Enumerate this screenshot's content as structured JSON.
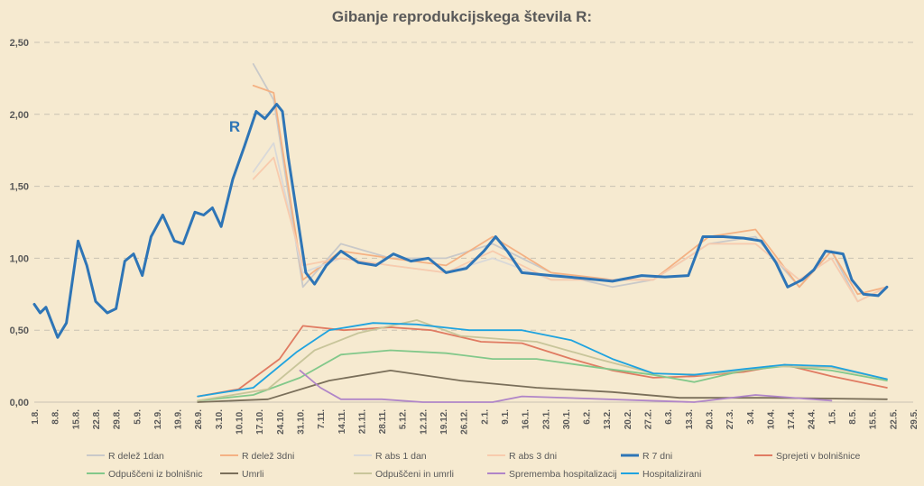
{
  "chart_data": {
    "type": "line",
    "title": "Gibanje reprodukcijskega števila R:",
    "annotation": "R",
    "ylim": [
      0,
      2.5
    ],
    "y_ticks": [
      "0,00",
      "0,50",
      "1,00",
      "1,50",
      "2,00",
      "2,50"
    ],
    "y_tick_values": [
      0,
      0.5,
      1,
      1.5,
      2,
      2.5
    ],
    "grid": "horizontal dashed",
    "legend_position": "bottom",
    "x_start": "2020-08-01",
    "x_end": "2021-05-29",
    "x_ticks": [
      "1.8.",
      "8.8.",
      "15.8.",
      "22.8.",
      "29.8.",
      "5.9.",
      "12.9.",
      "19.9.",
      "26.9.",
      "3.10.",
      "10.10.",
      "17.10.",
      "24.10.",
      "31.10.",
      "7.11.",
      "14.11.",
      "21.11.",
      "28.11.",
      "5.12.",
      "12.12.",
      "19.12.",
      "26.12.",
      "2.1.",
      "9.1.",
      "16.1.",
      "23.1.",
      "30.1.",
      "6.2.",
      "13.2.",
      "20.2.",
      "27.2.",
      "6.3.",
      "13.3.",
      "20.3.",
      "27.3.",
      "3.4.",
      "10.4.",
      "17.4.",
      "24.4.",
      "1.5.",
      "8.5.",
      "15.5.",
      "22.5.",
      "29.5."
    ],
    "series": [
      {
        "name": "R delež 1dan",
        "color": "#c9c9c9",
        "points": [
          [
            "2020-10-15",
            2.35
          ],
          [
            "2020-10-22",
            2.1
          ],
          [
            "2020-11-01",
            0.8
          ],
          [
            "2020-11-14",
            1.1
          ],
          [
            "2020-12-01",
            1.0
          ],
          [
            "2020-12-20",
            1.0
          ],
          [
            "2021-01-05",
            1.1
          ],
          [
            "2021-01-25",
            0.9
          ],
          [
            "2021-02-15",
            0.8
          ],
          [
            "2021-03-01",
            0.85
          ],
          [
            "2021-03-20",
            1.1
          ],
          [
            "2021-04-05",
            1.15
          ],
          [
            "2021-04-20",
            0.8
          ],
          [
            "2021-05-01",
            1.05
          ],
          [
            "2021-05-10",
            0.7
          ],
          [
            "2021-05-20",
            0.8
          ]
        ]
      },
      {
        "name": "R delež 3dni",
        "color": "#f4b183",
        "points": [
          [
            "2020-10-15",
            2.2
          ],
          [
            "2020-10-22",
            2.15
          ],
          [
            "2020-11-01",
            0.85
          ],
          [
            "2020-11-14",
            1.05
          ],
          [
            "2020-12-01",
            1.0
          ],
          [
            "2020-12-20",
            0.95
          ],
          [
            "2021-01-05",
            1.15
          ],
          [
            "2021-01-25",
            0.9
          ],
          [
            "2021-02-15",
            0.85
          ],
          [
            "2021-03-01",
            0.85
          ],
          [
            "2021-03-20",
            1.15
          ],
          [
            "2021-04-05",
            1.2
          ],
          [
            "2021-04-20",
            0.8
          ],
          [
            "2021-05-01",
            1.05
          ],
          [
            "2021-05-10",
            0.75
          ],
          [
            "2021-05-20",
            0.8
          ]
        ]
      },
      {
        "name": "R abs 1 dan",
        "color": "#d9d9d9",
        "points": [
          [
            "2020-10-15",
            1.6
          ],
          [
            "2020-10-22",
            1.8
          ],
          [
            "2020-11-01",
            0.9
          ],
          [
            "2020-11-14",
            1.0
          ],
          [
            "2020-12-01",
            0.95
          ],
          [
            "2020-12-20",
            0.9
          ],
          [
            "2021-01-05",
            1.0
          ],
          [
            "2021-01-25",
            0.85
          ],
          [
            "2021-02-15",
            0.85
          ],
          [
            "2021-03-01",
            0.85
          ],
          [
            "2021-03-20",
            1.1
          ],
          [
            "2021-04-05",
            1.1
          ],
          [
            "2021-04-20",
            0.85
          ],
          [
            "2021-05-01",
            1.0
          ],
          [
            "2021-05-10",
            0.7
          ],
          [
            "2021-05-20",
            0.8
          ]
        ]
      },
      {
        "name": "R abs 3 dni",
        "color": "#f8cbad",
        "points": [
          [
            "2020-10-15",
            1.55
          ],
          [
            "2020-10-22",
            1.7
          ],
          [
            "2020-11-01",
            0.95
          ],
          [
            "2020-11-14",
            1.0
          ],
          [
            "2020-12-01",
            0.95
          ],
          [
            "2020-12-20",
            0.9
          ],
          [
            "2021-01-05",
            1.05
          ],
          [
            "2021-01-25",
            0.85
          ],
          [
            "2021-02-15",
            0.85
          ],
          [
            "2021-03-01",
            0.85
          ],
          [
            "2021-03-20",
            1.1
          ],
          [
            "2021-04-05",
            1.1
          ],
          [
            "2021-04-20",
            0.85
          ],
          [
            "2021-05-01",
            1.0
          ],
          [
            "2021-05-10",
            0.7
          ],
          [
            "2021-05-20",
            0.8
          ]
        ]
      },
      {
        "name": "R 7 dni",
        "color": "#2e75b6",
        "points": [
          [
            "2020-08-01",
            0.68
          ],
          [
            "2020-08-03",
            0.62
          ],
          [
            "2020-08-05",
            0.66
          ],
          [
            "2020-08-09",
            0.45
          ],
          [
            "2020-08-12",
            0.55
          ],
          [
            "2020-08-16",
            1.12
          ],
          [
            "2020-08-19",
            0.95
          ],
          [
            "2020-08-22",
            0.7
          ],
          [
            "2020-08-26",
            0.62
          ],
          [
            "2020-08-29",
            0.65
          ],
          [
            "2020-09-01",
            0.98
          ],
          [
            "2020-09-04",
            1.03
          ],
          [
            "2020-09-07",
            0.88
          ],
          [
            "2020-09-10",
            1.15
          ],
          [
            "2020-09-14",
            1.3
          ],
          [
            "2020-09-18",
            1.12
          ],
          [
            "2020-09-21",
            1.1
          ],
          [
            "2020-09-25",
            1.32
          ],
          [
            "2020-09-28",
            1.3
          ],
          [
            "2020-10-01",
            1.35
          ],
          [
            "2020-10-04",
            1.22
          ],
          [
            "2020-10-08",
            1.55
          ],
          [
            "2020-10-12",
            1.78
          ],
          [
            "2020-10-16",
            2.02
          ],
          [
            "2020-10-19",
            1.97
          ],
          [
            "2020-10-23",
            2.07
          ],
          [
            "2020-10-25",
            2.02
          ],
          [
            "2020-10-27",
            1.7
          ],
          [
            "2020-10-30",
            1.3
          ],
          [
            "2020-11-02",
            0.9
          ],
          [
            "2020-11-05",
            0.82
          ],
          [
            "2020-11-09",
            0.95
          ],
          [
            "2020-11-14",
            1.05
          ],
          [
            "2020-11-20",
            0.97
          ],
          [
            "2020-11-26",
            0.95
          ],
          [
            "2020-12-02",
            1.03
          ],
          [
            "2020-12-08",
            0.98
          ],
          [
            "2020-12-14",
            1.0
          ],
          [
            "2020-12-20",
            0.9
          ],
          [
            "2020-12-27",
            0.93
          ],
          [
            "2021-01-02",
            1.05
          ],
          [
            "2021-01-06",
            1.15
          ],
          [
            "2021-01-10",
            1.05
          ],
          [
            "2021-01-15",
            0.9
          ],
          [
            "2021-01-25",
            0.88
          ],
          [
            "2021-02-05",
            0.86
          ],
          [
            "2021-02-15",
            0.84
          ],
          [
            "2021-02-25",
            0.88
          ],
          [
            "2021-03-05",
            0.87
          ],
          [
            "2021-03-13",
            0.88
          ],
          [
            "2021-03-18",
            1.15
          ],
          [
            "2021-03-25",
            1.15
          ],
          [
            "2021-04-01",
            1.14
          ],
          [
            "2021-04-07",
            1.12
          ],
          [
            "2021-04-12",
            0.97
          ],
          [
            "2021-04-16",
            0.8
          ],
          [
            "2021-04-21",
            0.85
          ],
          [
            "2021-04-25",
            0.92
          ],
          [
            "2021-04-29",
            1.05
          ],
          [
            "2021-05-05",
            1.03
          ],
          [
            "2021-05-08",
            0.85
          ],
          [
            "2021-05-12",
            0.75
          ],
          [
            "2021-05-17",
            0.74
          ],
          [
            "2021-05-20",
            0.8
          ]
        ]
      },
      {
        "name": "Sprejeti v bolnišnice",
        "color": "#e07b62",
        "points": [
          [
            "2020-09-26",
            0.04
          ],
          [
            "2020-10-10",
            0.09
          ],
          [
            "2020-10-24",
            0.3
          ],
          [
            "2020-11-01",
            0.53
          ],
          [
            "2020-11-15",
            0.5
          ],
          [
            "2020-12-01",
            0.52
          ],
          [
            "2020-12-15",
            0.5
          ],
          [
            "2021-01-01",
            0.42
          ],
          [
            "2021-01-15",
            0.41
          ],
          [
            "2021-02-01",
            0.3
          ],
          [
            "2021-02-15",
            0.22
          ],
          [
            "2021-03-01",
            0.17
          ],
          [
            "2021-03-15",
            0.18
          ],
          [
            "2021-04-01",
            0.21
          ],
          [
            "2021-04-15",
            0.26
          ],
          [
            "2021-05-01",
            0.18
          ],
          [
            "2021-05-20",
            0.1
          ]
        ]
      },
      {
        "name": "Odpuščeni iz bolnišnic",
        "color": "#82c88a",
        "points": [
          [
            "2020-09-26",
            0.01
          ],
          [
            "2020-10-15",
            0.05
          ],
          [
            "2020-10-31",
            0.17
          ],
          [
            "2020-11-14",
            0.33
          ],
          [
            "2020-12-01",
            0.36
          ],
          [
            "2020-12-20",
            0.34
          ],
          [
            "2021-01-05",
            0.3
          ],
          [
            "2021-01-20",
            0.3
          ],
          [
            "2021-02-10",
            0.24
          ],
          [
            "2021-03-01",
            0.19
          ],
          [
            "2021-03-15",
            0.14
          ],
          [
            "2021-04-01",
            0.22
          ],
          [
            "2021-04-15",
            0.25
          ],
          [
            "2021-05-01",
            0.22
          ],
          [
            "2021-05-20",
            0.15
          ]
        ]
      },
      {
        "name": "Umrli",
        "color": "#7a6f5a",
        "points": [
          [
            "2020-09-26",
            0.0
          ],
          [
            "2020-10-20",
            0.02
          ],
          [
            "2020-11-10",
            0.15
          ],
          [
            "2020-12-01",
            0.22
          ],
          [
            "2020-12-25",
            0.15
          ],
          [
            "2021-01-20",
            0.1
          ],
          [
            "2021-02-15",
            0.07
          ],
          [
            "2021-03-10",
            0.03
          ],
          [
            "2021-04-10",
            0.03
          ],
          [
            "2021-05-20",
            0.02
          ]
        ]
      },
      {
        "name": "Odpuščeni in umrli",
        "color": "#c8c59a",
        "points": [
          [
            "2020-09-26",
            0.01
          ],
          [
            "2020-10-20",
            0.09
          ],
          [
            "2020-11-05",
            0.36
          ],
          [
            "2020-11-20",
            0.48
          ],
          [
            "2020-12-10",
            0.57
          ],
          [
            "2020-12-25",
            0.46
          ],
          [
            "2021-01-20",
            0.42
          ],
          [
            "2021-02-10",
            0.3
          ],
          [
            "2021-03-01",
            0.2
          ],
          [
            "2021-03-20",
            0.19
          ],
          [
            "2021-04-10",
            0.25
          ],
          [
            "2021-05-01",
            0.24
          ],
          [
            "2021-05-20",
            0.16
          ]
        ]
      },
      {
        "name": "Sprememba hospitalizacij",
        "color": "#b085c8",
        "points": [
          [
            "2020-10-31",
            0.22
          ],
          [
            "2020-11-07",
            0.1
          ],
          [
            "2020-11-14",
            0.02
          ],
          [
            "2020-11-28",
            0.02
          ],
          [
            "2020-12-12",
            0.0
          ],
          [
            "2021-01-05",
            0.0
          ],
          [
            "2021-01-15",
            0.04
          ],
          [
            "2021-03-15",
            0.0
          ],
          [
            "2021-04-05",
            0.05
          ],
          [
            "2021-05-01",
            0.01
          ]
        ]
      },
      {
        "name": "Hospitalizirani",
        "color": "#1fa3df",
        "points": [
          [
            "2020-09-26",
            0.04
          ],
          [
            "2020-10-15",
            0.1
          ],
          [
            "2020-10-30",
            0.35
          ],
          [
            "2020-11-10",
            0.5
          ],
          [
            "2020-11-25",
            0.55
          ],
          [
            "2020-12-10",
            0.54
          ],
          [
            "2020-12-28",
            0.5
          ],
          [
            "2021-01-15",
            0.5
          ],
          [
            "2021-02-01",
            0.43
          ],
          [
            "2021-02-15",
            0.3
          ],
          [
            "2021-03-01",
            0.2
          ],
          [
            "2021-03-15",
            0.19
          ],
          [
            "2021-04-01",
            0.23
          ],
          [
            "2021-04-15",
            0.26
          ],
          [
            "2021-05-01",
            0.25
          ],
          [
            "2021-05-20",
            0.16
          ]
        ]
      }
    ]
  }
}
